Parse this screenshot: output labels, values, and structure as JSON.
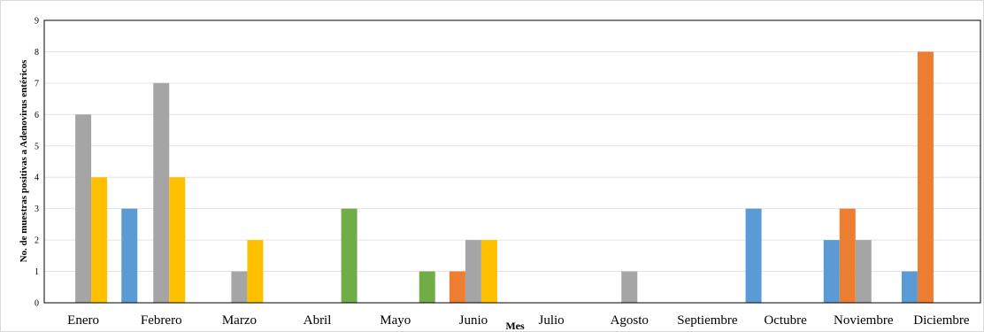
{
  "chart_data": {
    "type": "bar",
    "title": "",
    "xlabel": "Mes",
    "ylabel": "No. de muestras positivas a Adenovirus entéricos",
    "ylim": [
      0,
      9
    ],
    "yticks": [
      0,
      1,
      2,
      3,
      4,
      5,
      6,
      7,
      8,
      9
    ],
    "grid": true,
    "legend": "none",
    "categories": [
      "Enero",
      "Febrero",
      "Marzo",
      "Abril",
      "Mayo",
      "Junio",
      "Julio",
      "Agosto",
      "Septiembre",
      "Octubre",
      "Noviembre",
      "Diciembre"
    ],
    "series": [
      {
        "color": "#5B9BD5",
        "values": [
          0,
          3,
          0,
          0,
          0,
          0,
          0,
          0,
          0,
          3,
          2,
          1
        ]
      },
      {
        "color": "#ED7D31",
        "values": [
          0,
          0,
          0,
          0,
          0,
          1,
          0,
          0,
          0,
          0,
          3,
          8
        ]
      },
      {
        "color": "#A5A5A5",
        "values": [
          6,
          7,
          1,
          0,
          0,
          2,
          0,
          1,
          0,
          0,
          2,
          0
        ]
      },
      {
        "color": "#FFC000",
        "values": [
          4,
          4,
          2,
          0,
          0,
          2,
          0,
          0,
          0,
          0,
          0,
          0
        ]
      },
      {
        "color": "#70AD47",
        "values": [
          0,
          0,
          0,
          3,
          1,
          0,
          0,
          0,
          0,
          0,
          0,
          0
        ]
      }
    ]
  }
}
